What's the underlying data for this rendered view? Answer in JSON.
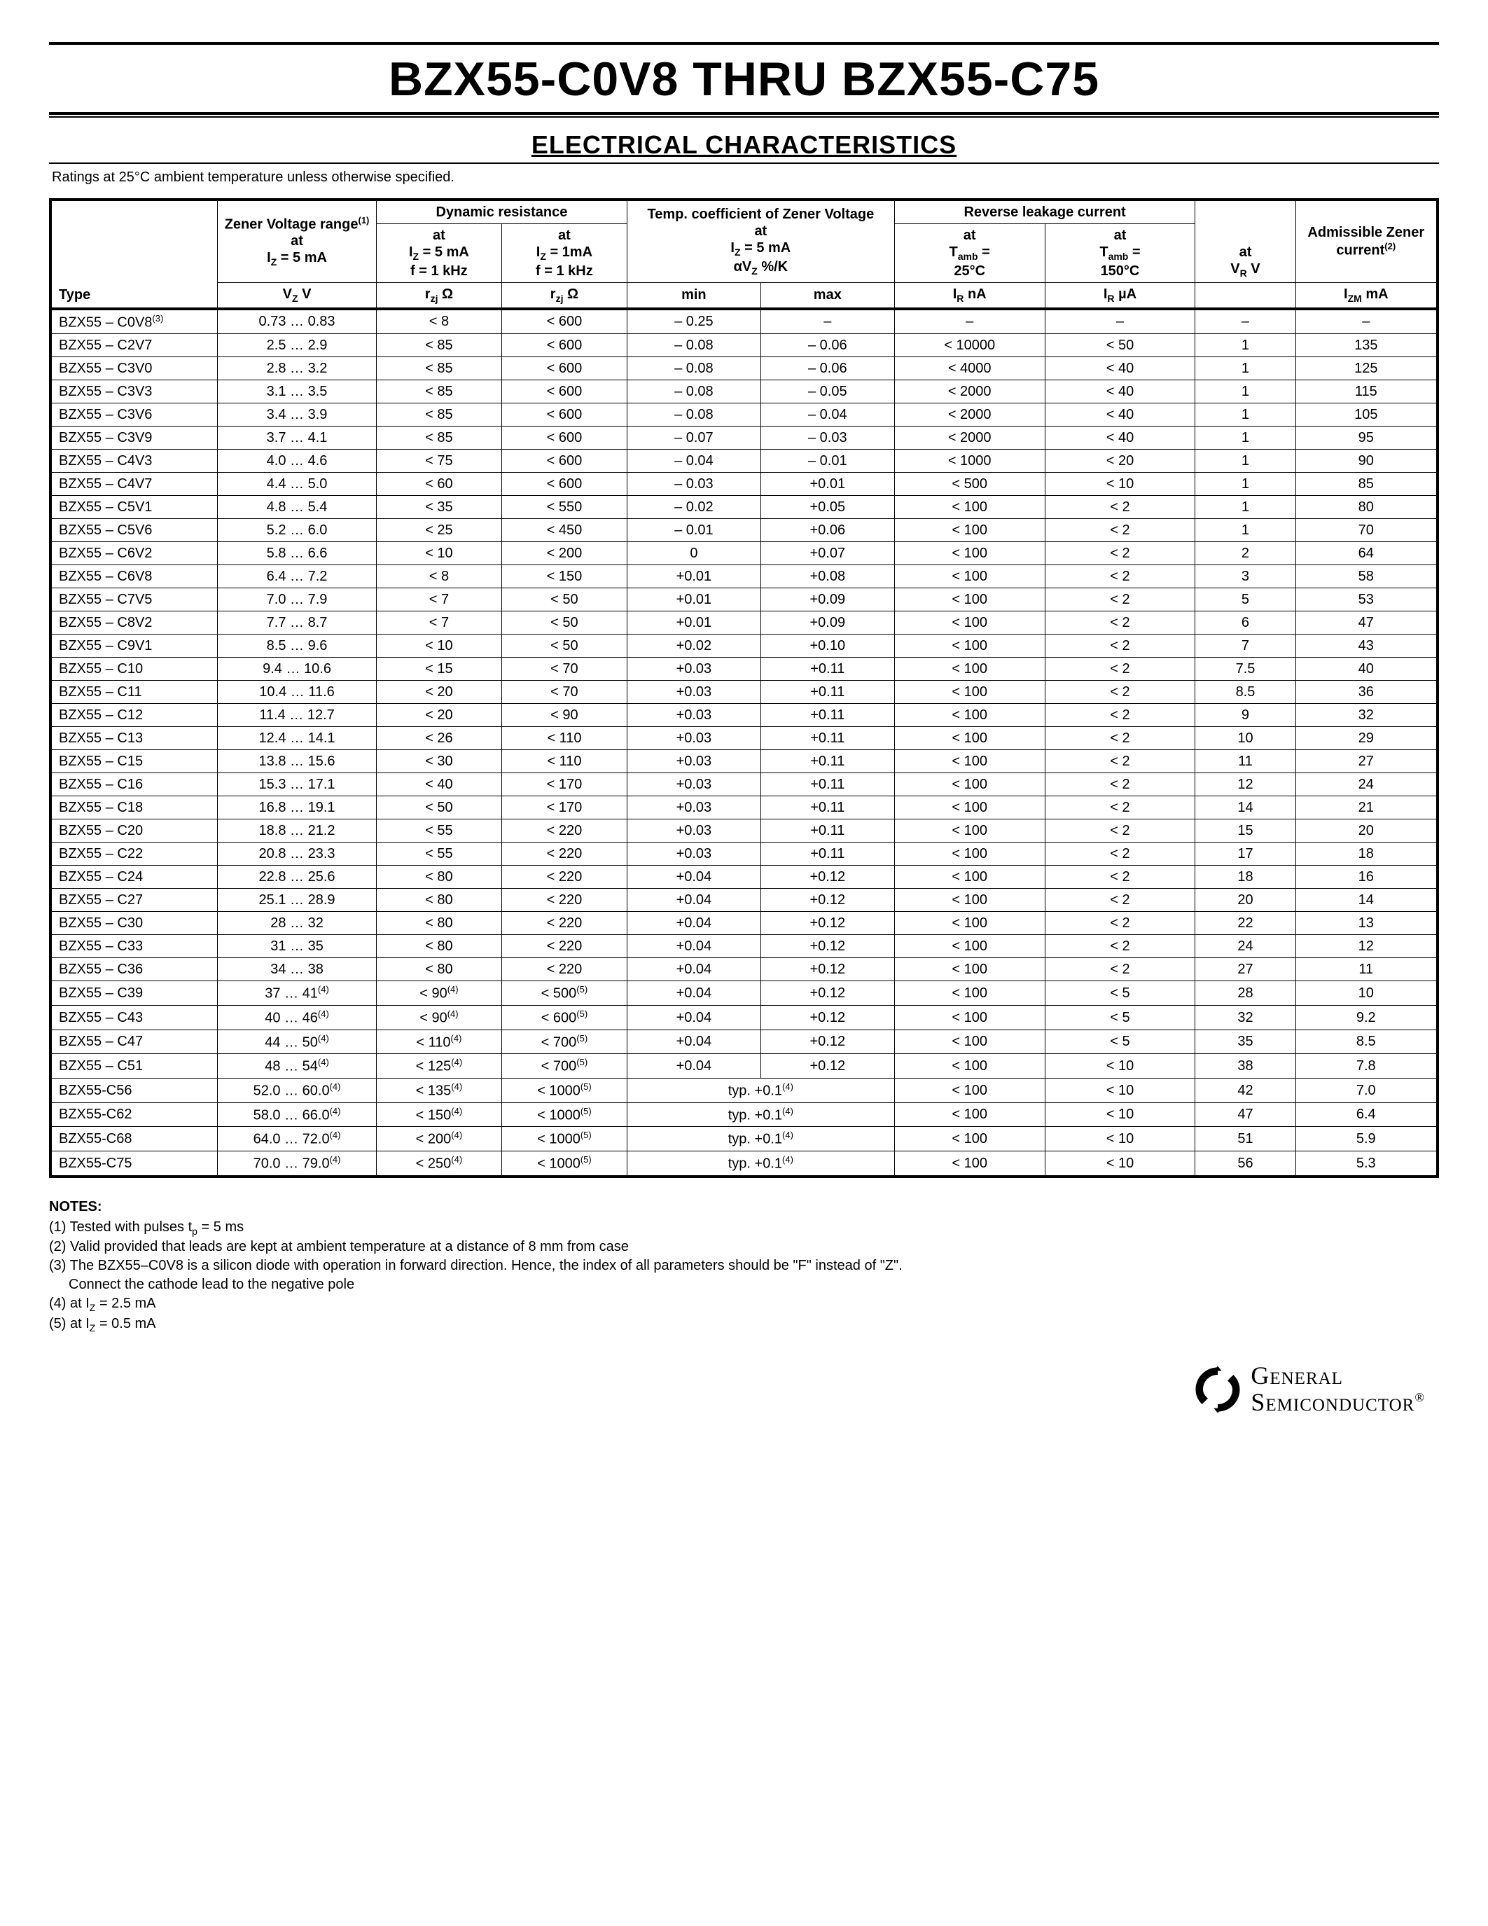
{
  "title": "BZX55-C0V8 THRU BZX55-C75",
  "subtitle": "ELECTRICAL CHARACTERISTICS",
  "ratings_note": "Ratings at 25°C ambient temperature unless otherwise specified.",
  "headers": {
    "type": "Type",
    "zener_voltage": "Zener Voltage range",
    "zener_voltage_sup": "(1)",
    "zener_voltage_at": "at",
    "zener_voltage_iz": "I",
    "zener_voltage_iz_sub": "Z",
    "zener_voltage_iz_val": " = 5 mA",
    "vz": "V",
    "vz_sub": "Z",
    "vz_unit": " V",
    "dyn_res": "Dynamic resistance",
    "dyn_5ma_at": "at",
    "dyn_5ma_iz": "I",
    "dyn_5ma_iz_sub": "Z",
    "dyn_5ma_val": " = 5 mA",
    "dyn_5ma_f": "f = 1 kHz",
    "dyn_1ma_at": "at",
    "dyn_1ma_iz": "I",
    "dyn_1ma_iz_sub": "Z",
    "dyn_1ma_val": " = 1mA",
    "dyn_1ma_f": "f = 1 kHz",
    "rzj": "r",
    "rzj_sub": "zj",
    "rzj_unit": " Ω",
    "temp_coef": "Temp. coefficient of Zener Voltage",
    "temp_at": "at",
    "temp_iz": "I",
    "temp_iz_sub": "Z",
    "temp_iz_val": " = 5 mA",
    "temp_unit_a": "αV",
    "temp_unit_sub": "Z",
    "temp_unit_rest": " %/K",
    "min": "min",
    "max": "max",
    "rev_leak": "Reverse leakage current",
    "tamb25_at": "at",
    "tamb25_t": "T",
    "tamb25_sub": "amb",
    "tamb25_eq": " =",
    "tamb25_val": "25°C",
    "tamb150_at": "at",
    "tamb150_t": "T",
    "tamb150_sub": "amb",
    "tamb150_eq": " =",
    "tamb150_val": "150°C",
    "ir_na": "I",
    "ir_na_sub": "R",
    "ir_na_unit": " nA",
    "ir_ua": "I",
    "ir_ua_sub": "R",
    "ir_ua_unit": " µA",
    "vr_at": "at",
    "vr_v": "V",
    "vr_sub": "R",
    "vr_unit": " V",
    "admissible": "Admissible Zener current",
    "admissible_sup": "(2)",
    "izm": "I",
    "izm_sub": "ZM",
    "izm_unit": " mA"
  },
  "rows": [
    {
      "type": "BZX55 – C0V8",
      "type_sup": "(3)",
      "vz": "0.73 … 0.83",
      "r5": "< 8",
      "r1": "< 600",
      "tmin": "– 0.25",
      "tmax": "–",
      "irna": "–",
      "irua": "–",
      "vr": "–",
      "izm": "–"
    },
    {
      "type": "BZX55 – C2V7",
      "vz": "2.5 … 2.9",
      "r5": "< 85",
      "r1": "< 600",
      "tmin": "– 0.08",
      "tmax": "– 0.06",
      "irna": "< 10000",
      "irua": "< 50",
      "vr": "1",
      "izm": "135"
    },
    {
      "type": "BZX55 – C3V0",
      "vz": "2.8 … 3.2",
      "r5": "< 85",
      "r1": "< 600",
      "tmin": "– 0.08",
      "tmax": "– 0.06",
      "irna": "< 4000",
      "irua": "< 40",
      "vr": "1",
      "izm": "125"
    },
    {
      "type": "BZX55 – C3V3",
      "vz": "3.1 … 3.5",
      "r5": "< 85",
      "r1": "< 600",
      "tmin": "– 0.08",
      "tmax": "– 0.05",
      "irna": "< 2000",
      "irua": "< 40",
      "vr": "1",
      "izm": "115"
    },
    {
      "type": "BZX55 – C3V6",
      "vz": "3.4 … 3.9",
      "r5": "< 85",
      "r1": "< 600",
      "tmin": "– 0.08",
      "tmax": "– 0.04",
      "irna": "< 2000",
      "irua": "< 40",
      "vr": "1",
      "izm": "105"
    },
    {
      "type": "BZX55 – C3V9",
      "vz": "3.7 … 4.1",
      "r5": "< 85",
      "r1": "< 600",
      "tmin": "– 0.07",
      "tmax": "– 0.03",
      "irna": "< 2000",
      "irua": "< 40",
      "vr": "1",
      "izm": "95"
    },
    {
      "type": "BZX55 – C4V3",
      "vz": "4.0 … 4.6",
      "r5": "< 75",
      "r1": "< 600",
      "tmin": "– 0.04",
      "tmax": "– 0.01",
      "irna": "< 1000",
      "irua": "< 20",
      "vr": "1",
      "izm": "90"
    },
    {
      "type": "BZX55 – C4V7",
      "vz": "4.4 … 5.0",
      "r5": "< 60",
      "r1": "< 600",
      "tmin": "– 0.03",
      "tmax": "+0.01",
      "irna": "< 500",
      "irua": "< 10",
      "vr": "1",
      "izm": "85"
    },
    {
      "type": "BZX55 – C5V1",
      "vz": "4.8 … 5.4",
      "r5": "< 35",
      "r1": "< 550",
      "tmin": "– 0.02",
      "tmax": "+0.05",
      "irna": "< 100",
      "irua": "< 2",
      "vr": "1",
      "izm": "80"
    },
    {
      "type": "BZX55 – C5V6",
      "vz": "5.2 … 6.0",
      "r5": "< 25",
      "r1": "< 450",
      "tmin": "– 0.01",
      "tmax": "+0.06",
      "irna": "< 100",
      "irua": "< 2",
      "vr": "1",
      "izm": "70"
    },
    {
      "type": "BZX55 – C6V2",
      "vz": "5.8 … 6.6",
      "r5": "< 10",
      "r1": "< 200",
      "tmin": "0",
      "tmax": "+0.07",
      "irna": "< 100",
      "irua": "< 2",
      "vr": "2",
      "izm": "64"
    },
    {
      "type": "BZX55 – C6V8",
      "vz": "6.4 … 7.2",
      "r5": "< 8",
      "r1": "< 150",
      "tmin": "+0.01",
      "tmax": "+0.08",
      "irna": "< 100",
      "irua": "< 2",
      "vr": "3",
      "izm": "58"
    },
    {
      "type": "BZX55 – C7V5",
      "vz": "7.0 … 7.9",
      "r5": "< 7",
      "r1": "< 50",
      "tmin": "+0.01",
      "tmax": "+0.09",
      "irna": "< 100",
      "irua": "< 2",
      "vr": "5",
      "izm": "53"
    },
    {
      "type": "BZX55 – C8V2",
      "vz": "7.7 … 8.7",
      "r5": "< 7",
      "r1": "< 50",
      "tmin": "+0.01",
      "tmax": "+0.09",
      "irna": "< 100",
      "irua": "< 2",
      "vr": "6",
      "izm": "47"
    },
    {
      "type": "BZX55 – C9V1",
      "vz": "8.5 … 9.6",
      "r5": "< 10",
      "r1": "< 50",
      "tmin": "+0.02",
      "tmax": "+0.10",
      "irna": "< 100",
      "irua": "< 2",
      "vr": "7",
      "izm": "43"
    },
    {
      "type": "BZX55 – C10",
      "vz": "9.4 … 10.6",
      "r5": "< 15",
      "r1": "< 70",
      "tmin": "+0.03",
      "tmax": "+0.11",
      "irna": "< 100",
      "irua": "< 2",
      "vr": "7.5",
      "izm": "40"
    },
    {
      "type": "BZX55 – C11",
      "vz": "10.4 … 11.6",
      "r5": "< 20",
      "r1": "< 70",
      "tmin": "+0.03",
      "tmax": "+0.11",
      "irna": "< 100",
      "irua": "< 2",
      "vr": "8.5",
      "izm": "36"
    },
    {
      "type": "BZX55 – C12",
      "vz": "11.4 … 12.7",
      "r5": "< 20",
      "r1": "< 90",
      "tmin": "+0.03",
      "tmax": "+0.11",
      "irna": "< 100",
      "irua": "< 2",
      "vr": "9",
      "izm": "32"
    },
    {
      "type": "BZX55 – C13",
      "vz": "12.4 … 14.1",
      "r5": "< 26",
      "r1": "< 110",
      "tmin": "+0.03",
      "tmax": "+0.11",
      "irna": "< 100",
      "irua": "< 2",
      "vr": "10",
      "izm": "29"
    },
    {
      "type": "BZX55 – C15",
      "vz": "13.8 … 15.6",
      "r5": "< 30",
      "r1": "< 110",
      "tmin": "+0.03",
      "tmax": "+0.11",
      "irna": "< 100",
      "irua": "< 2",
      "vr": "11",
      "izm": "27"
    },
    {
      "type": "BZX55 – C16",
      "vz": "15.3 … 17.1",
      "r5": "< 40",
      "r1": "< 170",
      "tmin": "+0.03",
      "tmax": "+0.11",
      "irna": "< 100",
      "irua": "< 2",
      "vr": "12",
      "izm": "24"
    },
    {
      "type": "BZX55 – C18",
      "vz": "16.8 … 19.1",
      "r5": "< 50",
      "r1": "< 170",
      "tmin": "+0.03",
      "tmax": "+0.11",
      "irna": "< 100",
      "irua": "< 2",
      "vr": "14",
      "izm": "21"
    },
    {
      "type": "BZX55 – C20",
      "vz": "18.8 … 21.2",
      "r5": "< 55",
      "r1": "< 220",
      "tmin": "+0.03",
      "tmax": "+0.11",
      "irna": "< 100",
      "irua": "< 2",
      "vr": "15",
      "izm": "20"
    },
    {
      "type": "BZX55 – C22",
      "vz": "20.8 … 23.3",
      "r5": "< 55",
      "r1": "< 220",
      "tmin": "+0.03",
      "tmax": "+0.11",
      "irna": "< 100",
      "irua": "< 2",
      "vr": "17",
      "izm": "18"
    },
    {
      "type": "BZX55 – C24",
      "vz": "22.8 … 25.6",
      "r5": "< 80",
      "r1": "< 220",
      "tmin": "+0.04",
      "tmax": "+0.12",
      "irna": "< 100",
      "irua": "< 2",
      "vr": "18",
      "izm": "16"
    },
    {
      "type": "BZX55 – C27",
      "vz": "25.1 … 28.9",
      "r5": "< 80",
      "r1": "< 220",
      "tmin": "+0.04",
      "tmax": "+0.12",
      "irna": "< 100",
      "irua": "< 2",
      "vr": "20",
      "izm": "14"
    },
    {
      "type": "BZX55 – C30",
      "vz": "28 … 32",
      "r5": "< 80",
      "r1": "< 220",
      "tmin": "+0.04",
      "tmax": "+0.12",
      "irna": "< 100",
      "irua": "< 2",
      "vr": "22",
      "izm": "13"
    },
    {
      "type": "BZX55 – C33",
      "vz": "31 … 35",
      "r5": "< 80",
      "r1": "< 220",
      "tmin": "+0.04",
      "tmax": "+0.12",
      "irna": "< 100",
      "irua": "< 2",
      "vr": "24",
      "izm": "12"
    },
    {
      "type": "BZX55 – C36",
      "vz": "34 … 38",
      "r5": "< 80",
      "r1": "< 220",
      "tmin": "+0.04",
      "tmax": "+0.12",
      "irna": "< 100",
      "irua": "< 2",
      "vr": "27",
      "izm": "11"
    },
    {
      "type": "BZX55 – C39",
      "vz": "37 … 41",
      "vz_sup": "(4)",
      "r5": "< 90",
      "r5_sup": "(4)",
      "r1": "< 500",
      "r1_sup": "(5)",
      "tmin": "+0.04",
      "tmax": "+0.12",
      "irna": "< 100",
      "irua": "< 5",
      "vr": "28",
      "izm": "10"
    },
    {
      "type": "BZX55 – C43",
      "vz": "40 … 46",
      "vz_sup": "(4)",
      "r5": "< 90",
      "r5_sup": "(4)",
      "r1": "< 600",
      "r1_sup": "(5)",
      "tmin": "+0.04",
      "tmax": "+0.12",
      "irna": "< 100",
      "irua": "< 5",
      "vr": "32",
      "izm": "9.2"
    },
    {
      "type": "BZX55 – C47",
      "vz": "44 … 50",
      "vz_sup": "(4)",
      "r5": "< 110",
      "r5_sup": "(4)",
      "r1": "< 700",
      "r1_sup": "(5)",
      "tmin": "+0.04",
      "tmax": "+0.12",
      "irna": "< 100",
      "irua": "< 5",
      "vr": "35",
      "izm": "8.5"
    },
    {
      "type": "BZX55 – C51",
      "vz": "48 … 54",
      "vz_sup": "(4)",
      "r5": "< 125",
      "r5_sup": "(4)",
      "r1": "< 700",
      "r1_sup": "(5)",
      "tmin": "+0.04",
      "tmax": "+0.12",
      "irna": "< 100",
      "irua": "< 10",
      "vr": "38",
      "izm": "7.8"
    },
    {
      "type": "BZX55-C56",
      "vz": "52.0 … 60.0",
      "vz_sup": "(4)",
      "r5": "< 135",
      "r5_sup": "(4)",
      "r1": "< 1000",
      "r1_sup": "(5)",
      "typ": "typ. +0.1",
      "typ_sup": "(4)",
      "irna": "< 100",
      "irua": "< 10",
      "vr": "42",
      "izm": "7.0"
    },
    {
      "type": "BZX55-C62",
      "vz": "58.0 … 66.0",
      "vz_sup": "(4)",
      "r5": "< 150",
      "r5_sup": "(4)",
      "r1": "< 1000",
      "r1_sup": "(5)",
      "typ": "typ. +0.1",
      "typ_sup": "(4)",
      "irna": "< 100",
      "irua": "< 10",
      "vr": "47",
      "izm": "6.4"
    },
    {
      "type": "BZX55-C68",
      "vz": "64.0 … 72.0",
      "vz_sup": "(4)",
      "r5": "< 200",
      "r5_sup": "(4)",
      "r1": "< 1000",
      "r1_sup": "(5)",
      "typ": "typ. +0.1",
      "typ_sup": "(4)",
      "irna": "< 100",
      "irua": "< 10",
      "vr": "51",
      "izm": "5.9"
    },
    {
      "type": "BZX55-C75",
      "vz": "70.0 … 79.0",
      "vz_sup": "(4)",
      "r5": "< 250",
      "r5_sup": "(4)",
      "r1": "< 1000",
      "r1_sup": "(5)",
      "typ": "typ. +0.1",
      "typ_sup": "(4)",
      "irna": "< 100",
      "irua": "< 10",
      "vr": "56",
      "izm": "5.3"
    }
  ],
  "notes": {
    "title": "NOTES:",
    "n1": "(1) Tested with pulses t",
    "n1_sub": "p",
    "n1_rest": " = 5 ms",
    "n2": "(2) Valid provided that leads are kept at ambient temperature at a distance of 8 mm from case",
    "n3a": "(3) The BZX55–C0V8 is a silicon diode with operation in forward direction. Hence, the index of all parameters should be \"F\" instead of \"Z\".",
    "n3b": "Connect the cathode lead to the negative pole",
    "n4": "(4) at I",
    "n4_sub": "Z",
    "n4_rest": " = 2.5 mA",
    "n5": "(5) at I",
    "n5_sub": "Z",
    "n5_rest": " = 0.5 mA"
  },
  "logo": {
    "line1": "General",
    "line2": "Semiconductor",
    "reg": "®"
  },
  "colors": {
    "text": "#000000",
    "bg": "#ffffff",
    "border": "#000000"
  }
}
